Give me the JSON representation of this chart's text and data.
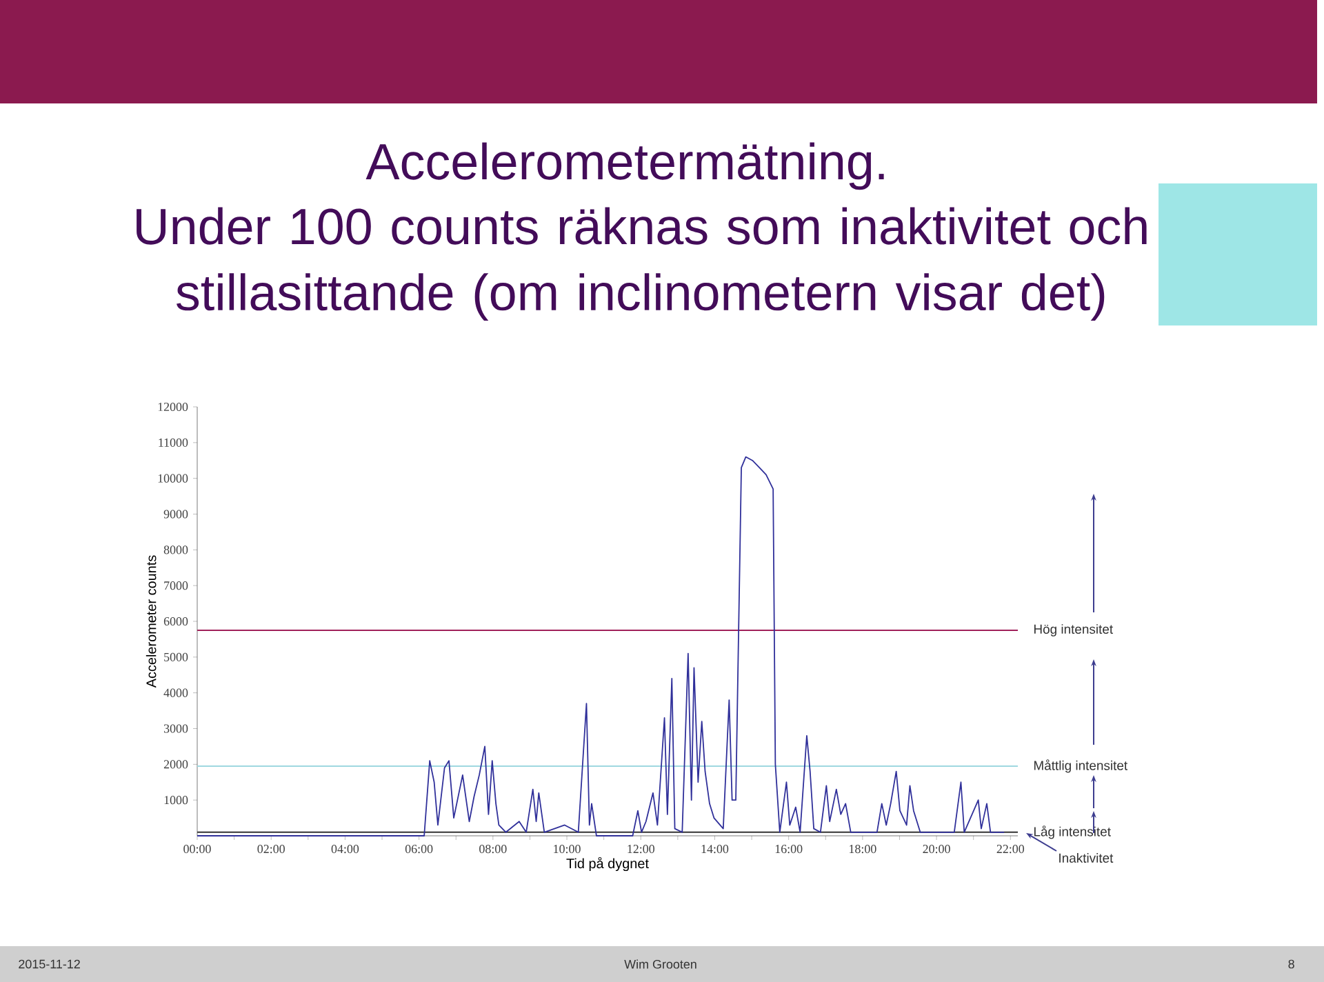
{
  "chart_data": {
    "type": "line",
    "title": "Accelerometermätning.",
    "subtitle": "Under 100 counts räknas som inaktivitet och stillasittande (om inclinometern visar det)",
    "xlabel": "Tid på dygnet",
    "ylabel": "Accelerometer counts",
    "xlim": [
      0,
      22.2
    ],
    "ylim": [
      0,
      12000
    ],
    "xticks": [
      {
        "value": 0,
        "label": "00:00"
      },
      {
        "value": 1,
        "label": null
      },
      {
        "value": 2,
        "label": "02:00"
      },
      {
        "value": 3,
        "label": null
      },
      {
        "value": 4,
        "label": "04:00"
      },
      {
        "value": 5,
        "label": null
      },
      {
        "value": 6,
        "label": "06:00"
      },
      {
        "value": 7,
        "label": null
      },
      {
        "value": 8,
        "label": "08:00"
      },
      {
        "value": 9,
        "label": null
      },
      {
        "value": 10,
        "label": "10:00"
      },
      {
        "value": 11,
        "label": null
      },
      {
        "value": 12,
        "label": "12:00"
      },
      {
        "value": 13,
        "label": null
      },
      {
        "value": 14,
        "label": "14:00"
      },
      {
        "value": 15,
        "label": null
      },
      {
        "value": 16,
        "label": "16:00"
      },
      {
        "value": 17,
        "label": null
      },
      {
        "value": 18,
        "label": "18:00"
      },
      {
        "value": 19,
        "label": null
      },
      {
        "value": 20,
        "label": "20:00"
      },
      {
        "value": 21,
        "label": null
      },
      {
        "value": 22,
        "label": "22:00"
      }
    ],
    "yticks": [
      1000,
      2000,
      3000,
      4000,
      5000,
      6000,
      7000,
      8000,
      9000,
      10000,
      11000,
      12000
    ],
    "marker": "none",
    "series": [
      {
        "color": "#30309a",
        "x": [
          0,
          6.14,
          6.29,
          6.41,
          6.51,
          6.69,
          6.81,
          6.94,
          7.18,
          7.36,
          7.49,
          7.63,
          7.78,
          7.88,
          7.98,
          8.08,
          8.16,
          8.35,
          8.71,
          8.9,
          9.08,
          9.17,
          9.24,
          9.39,
          9.94,
          10.31,
          10.53,
          10.61,
          10.67,
          10.8,
          11.78,
          11.92,
          12.02,
          12.14,
          12.33,
          12.45,
          12.64,
          12.72,
          12.84,
          12.92,
          13.12,
          13.28,
          13.37,
          13.44,
          13.55,
          13.65,
          13.74,
          13.86,
          13.98,
          14.23,
          14.39,
          14.47,
          14.57,
          14.72,
          14.84,
          15.02,
          15.21,
          15.39,
          15.58,
          15.64,
          15.76,
          15.94,
          16.03,
          16.19,
          16.31,
          16.41,
          16.49,
          16.58,
          16.68,
          16.86,
          17.02,
          17.11,
          17.29,
          17.41,
          17.54,
          17.68,
          18.39,
          18.52,
          18.64,
          18.76,
          18.91,
          19.01,
          19.19,
          19.28,
          19.38,
          19.56,
          20.48,
          20.66,
          20.75,
          21.13,
          21.21,
          21.36,
          21.46,
          21.83
        ],
        "values": [
          0,
          0,
          2100,
          1500,
          300,
          1900,
          2100,
          500,
          1700,
          400,
          1100,
          1700,
          2500,
          600,
          2100,
          900,
          300,
          100,
          400,
          100,
          1300,
          400,
          1200,
          100,
          300,
          100,
          3700,
          300,
          900,
          0,
          0,
          700,
          100,
          400,
          1200,
          300,
          3300,
          600,
          4400,
          200,
          100,
          5100,
          1000,
          4700,
          1500,
          3200,
          1800,
          900,
          500,
          200,
          3800,
          1000,
          1000,
          10300,
          10600,
          10500,
          10300,
          10100,
          9700,
          2000,
          100,
          1500,
          300,
          800,
          100,
          1600,
          2800,
          1800,
          200,
          100,
          1400,
          400,
          1300,
          600,
          900,
          100,
          100,
          900,
          300,
          900,
          1800,
          700,
          300,
          1400,
          700,
          100,
          100,
          1500,
          100,
          1000,
          200,
          900,
          100,
          100
        ]
      }
    ],
    "ref_lines": [
      {
        "axis": "y",
        "value": 5750,
        "label": "Hög intensitet",
        "color": "#a0205a"
      },
      {
        "axis": "y",
        "value": 1950,
        "label": "Måttlig intensitet",
        "color": "#9ed8e0"
      },
      {
        "axis": "y",
        "value": 100,
        "label": "Låg intensitet",
        "color": "#333333"
      }
    ],
    "annotations": [
      "Inaktivitet",
      "2015-11-12",
      "Wim Grooten",
      "8"
    ]
  }
}
